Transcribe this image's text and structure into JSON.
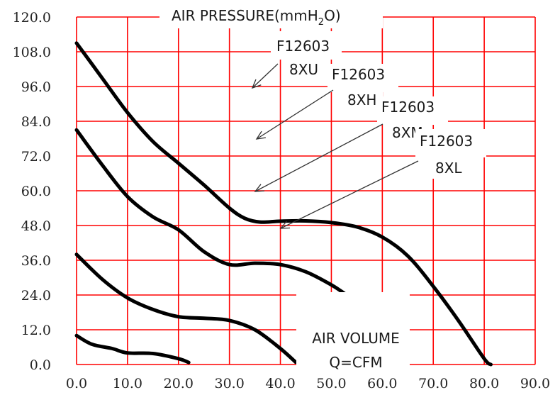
{
  "chart_data": {
    "type": "line",
    "title": "AIR PRESSURE(mmH2O)",
    "title_parts": [
      "AIR PRESSURE(mmH",
      "2",
      "O)"
    ],
    "xlabel_lines": [
      "AIR VOLUME",
      "Q=CFM"
    ],
    "xlim": [
      0,
      90
    ],
    "ylim": [
      0,
      120
    ],
    "x_ticks": [
      "0.0",
      "10.0",
      "20.0",
      "30.0",
      "40.0",
      "50.0",
      "60.0",
      "70.0",
      "80.0",
      "90.0"
    ],
    "y_ticks": [
      "0.0",
      "12.0",
      "24.0",
      "36.0",
      "48.0",
      "60.0",
      "72.0",
      "84.0",
      "96.0",
      "108.0",
      "120.0"
    ],
    "grid": true,
    "grid_color": "#ff0000",
    "line_color": "#000000",
    "series": [
      {
        "name": "F12603 8XU",
        "label_lines": [
          "F12603",
          "8XU"
        ],
        "points": [
          [
            0,
            111
          ],
          [
            5,
            99
          ],
          [
            10,
            87
          ],
          [
            15,
            77
          ],
          [
            20,
            69.5
          ],
          [
            25,
            62
          ],
          [
            30,
            54
          ],
          [
            33,
            50.5
          ],
          [
            36,
            49.2
          ],
          [
            40,
            49.5
          ],
          [
            45,
            49.6
          ],
          [
            50,
            49
          ],
          [
            55,
            47.5
          ],
          [
            60,
            44
          ],
          [
            65,
            37.5
          ],
          [
            70,
            27
          ],
          [
            75,
            15
          ],
          [
            80,
            2
          ],
          [
            81.3,
            0
          ]
        ]
      },
      {
        "name": "F12603 8XH",
        "label_lines": [
          "F12603",
          "8XH"
        ],
        "points": [
          [
            0,
            81
          ],
          [
            5,
            69
          ],
          [
            10,
            58
          ],
          [
            15,
            51
          ],
          [
            20,
            46.5
          ],
          [
            25,
            39
          ],
          [
            30,
            34.5
          ],
          [
            35,
            35
          ],
          [
            40,
            34.5
          ],
          [
            45,
            32
          ],
          [
            50,
            27.5
          ],
          [
            53,
            24
          ]
        ]
      },
      {
        "name": "F12603 8XM",
        "label_lines": [
          "F12603",
          "8XM"
        ],
        "points": [
          [
            0,
            38
          ],
          [
            5,
            29.5
          ],
          [
            10,
            23
          ],
          [
            15,
            19
          ],
          [
            20,
            16.5
          ],
          [
            25,
            16
          ],
          [
            30,
            15.2
          ],
          [
            35,
            12
          ],
          [
            40,
            5.5
          ],
          [
            43,
            0.8
          ]
        ]
      },
      {
        "name": "F12603 8XL",
        "label_lines": [
          "F12603",
          "8XL"
        ],
        "points": [
          [
            0,
            10
          ],
          [
            3,
            7
          ],
          [
            7,
            5.5
          ],
          [
            10,
            4
          ],
          [
            15,
            3.8
          ],
          [
            20,
            2
          ],
          [
            22,
            0.7
          ]
        ]
      }
    ]
  }
}
